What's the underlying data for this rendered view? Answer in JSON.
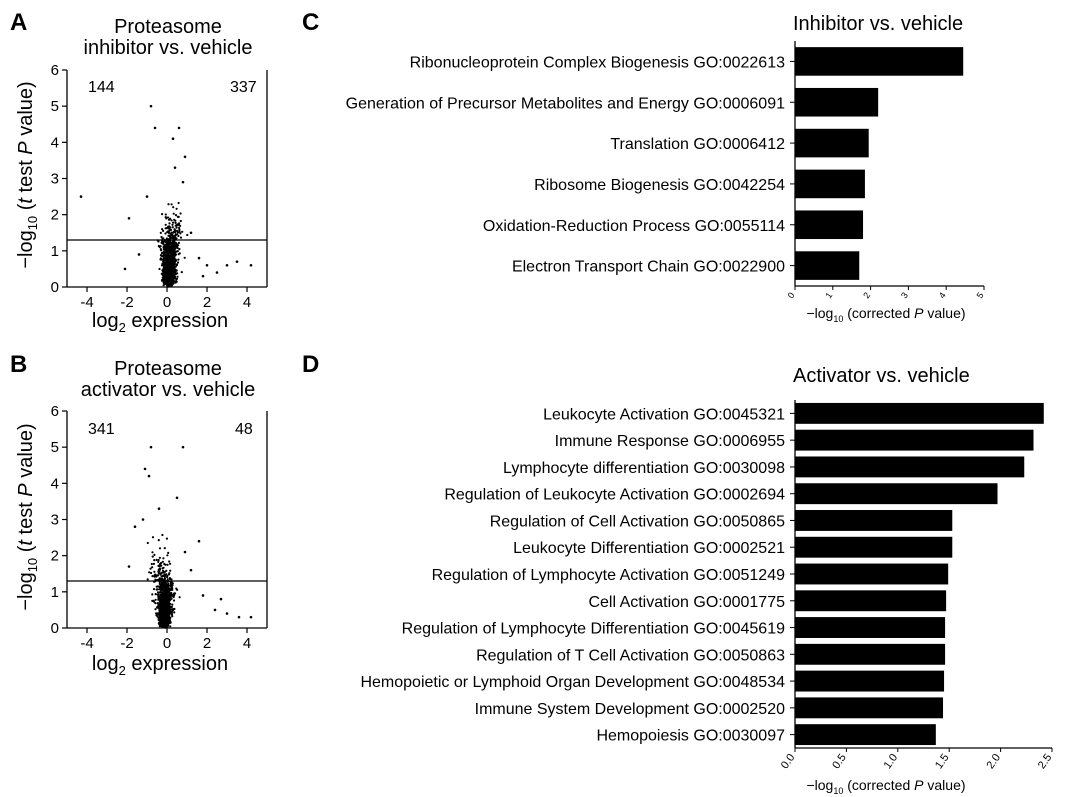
{
  "panels": {
    "A": {
      "letter": "A",
      "title_line1": "Proteasome",
      "title_line2": "inhibitor vs. vehicle",
      "ylabel": "−log10 (t test P value)",
      "xlabel": "log2 expression",
      "count_left": "144",
      "count_right": "337"
    },
    "B": {
      "letter": "B",
      "title_line1": "Proteasome",
      "title_line2": "activator vs. vehicle",
      "ylabel": "−log10 (t test P value)",
      "xlabel": "log2 expression",
      "count_left": "341",
      "count_right": "48"
    },
    "C": {
      "letter": "C"
    },
    "D": {
      "letter": "D"
    }
  },
  "chart_data": [
    {
      "id": "A",
      "type": "scatter",
      "title": "Proteasome inhibitor vs. vehicle",
      "xlabel": "log2 expression",
      "ylabel": "−log10 (t test P value)",
      "xlim": [
        -5,
        5
      ],
      "ylim": [
        0,
        6
      ],
      "xticks": [
        -4,
        -2,
        0,
        2,
        4
      ],
      "yticks": [
        0,
        1,
        2,
        3,
        4,
        5,
        6
      ],
      "threshold_y": 1.3,
      "annotations": [
        "144",
        "337"
      ],
      "points": [
        [
          -4.3,
          2.5
        ],
        [
          -0.8,
          5.0
        ],
        [
          -0.6,
          4.4
        ],
        [
          0.6,
          4.4
        ],
        [
          0.3,
          4.1
        ],
        [
          0.9,
          3.6
        ],
        [
          0.4,
          3.3
        ],
        [
          -1.0,
          2.5
        ],
        [
          -1.9,
          1.9
        ],
        [
          0.8,
          2.9
        ],
        [
          1.2,
          1.5
        ],
        [
          1.6,
          0.8
        ],
        [
          2.0,
          0.6
        ],
        [
          2.5,
          0.4
        ],
        [
          3.0,
          0.6
        ],
        [
          3.5,
          0.7
        ],
        [
          4.2,
          0.6
        ],
        [
          1.8,
          0.3
        ],
        [
          -1.4,
          0.9
        ],
        [
          -2.1,
          0.5
        ]
      ]
    },
    {
      "id": "B",
      "type": "scatter",
      "title": "Proteasome activator vs. vehicle",
      "xlabel": "log2 expression",
      "ylabel": "−log10 (t test P value)",
      "xlim": [
        -5,
        5
      ],
      "ylim": [
        0,
        6
      ],
      "xticks": [
        -4,
        -2,
        0,
        2,
        4
      ],
      "yticks": [
        0,
        1,
        2,
        3,
        4,
        5,
        6
      ],
      "threshold_y": 1.3,
      "annotations": [
        "341",
        "48"
      ],
      "points": [
        [
          -0.8,
          5.0
        ],
        [
          0.8,
          5.0
        ],
        [
          -1.1,
          4.4
        ],
        [
          -0.9,
          4.2
        ],
        [
          0.5,
          3.6
        ],
        [
          -1.6,
          2.8
        ],
        [
          -1.2,
          3.0
        ],
        [
          1.6,
          2.4
        ],
        [
          0.9,
          2.1
        ],
        [
          -0.4,
          3.3
        ],
        [
          1.2,
          1.6
        ],
        [
          1.8,
          0.9
        ],
        [
          2.4,
          0.5
        ],
        [
          3.0,
          0.4
        ],
        [
          3.6,
          0.3
        ],
        [
          4.2,
          0.3
        ],
        [
          2.7,
          0.8
        ],
        [
          -1.9,
          1.7
        ]
      ]
    },
    {
      "id": "C",
      "type": "bar",
      "orientation": "horizontal",
      "title": "Inhibitor vs. vehicle",
      "xlabel": "−log10 (corrected P value)",
      "xlim": [
        0,
        5
      ],
      "xticks": [
        0,
        1,
        2,
        3,
        4,
        5
      ],
      "categories": [
        "Ribonucleoprotein Complex Biogenesis GO:0022613",
        "Generation of Precursor Metabolites and Energy GO:0006091",
        "Translation GO:0006412",
        "Ribosome Biogenesis GO:0042254",
        "Oxidation-Reduction Process GO:0055114",
        "Electron Transport Chain GO:0022900"
      ],
      "values": [
        4.45,
        2.2,
        1.95,
        1.85,
        1.8,
        1.7
      ]
    },
    {
      "id": "D",
      "type": "bar",
      "orientation": "horizontal",
      "title": "Activator vs. vehicle",
      "xlabel": "−log10 (corrected P value)",
      "xlim": [
        0,
        2.5
      ],
      "xticks": [
        "0.0",
        "0.5",
        "1.0",
        "1.5",
        "2.0",
        "2.5"
      ],
      "categories": [
        "Leukocyte Activation GO:0045321",
        "Immune Response GO:0006955",
        "Lymphocyte differentiation GO:0030098",
        "Regulation of Leukocyte Activation GO:0002694",
        "Regulation of Cell Activation GO:0050865",
        "Leukocyte Differentiation GO:0002521",
        "Regulation of Lymphocyte Activation GO:0051249",
        "Cell Activation GO:0001775",
        "Regulation of Lymphocyte Differentiation GO:0045619",
        "Regulation of T Cell Activation GO:0050863",
        "Hemopoietic or Lymphoid Organ Development GO:0048534",
        "Immune System Development GO:0002520",
        "Hemopoiesis GO:0030097"
      ],
      "values": [
        2.42,
        2.32,
        2.23,
        1.97,
        1.53,
        1.53,
        1.49,
        1.47,
        1.46,
        1.46,
        1.45,
        1.44,
        1.37
      ]
    }
  ]
}
